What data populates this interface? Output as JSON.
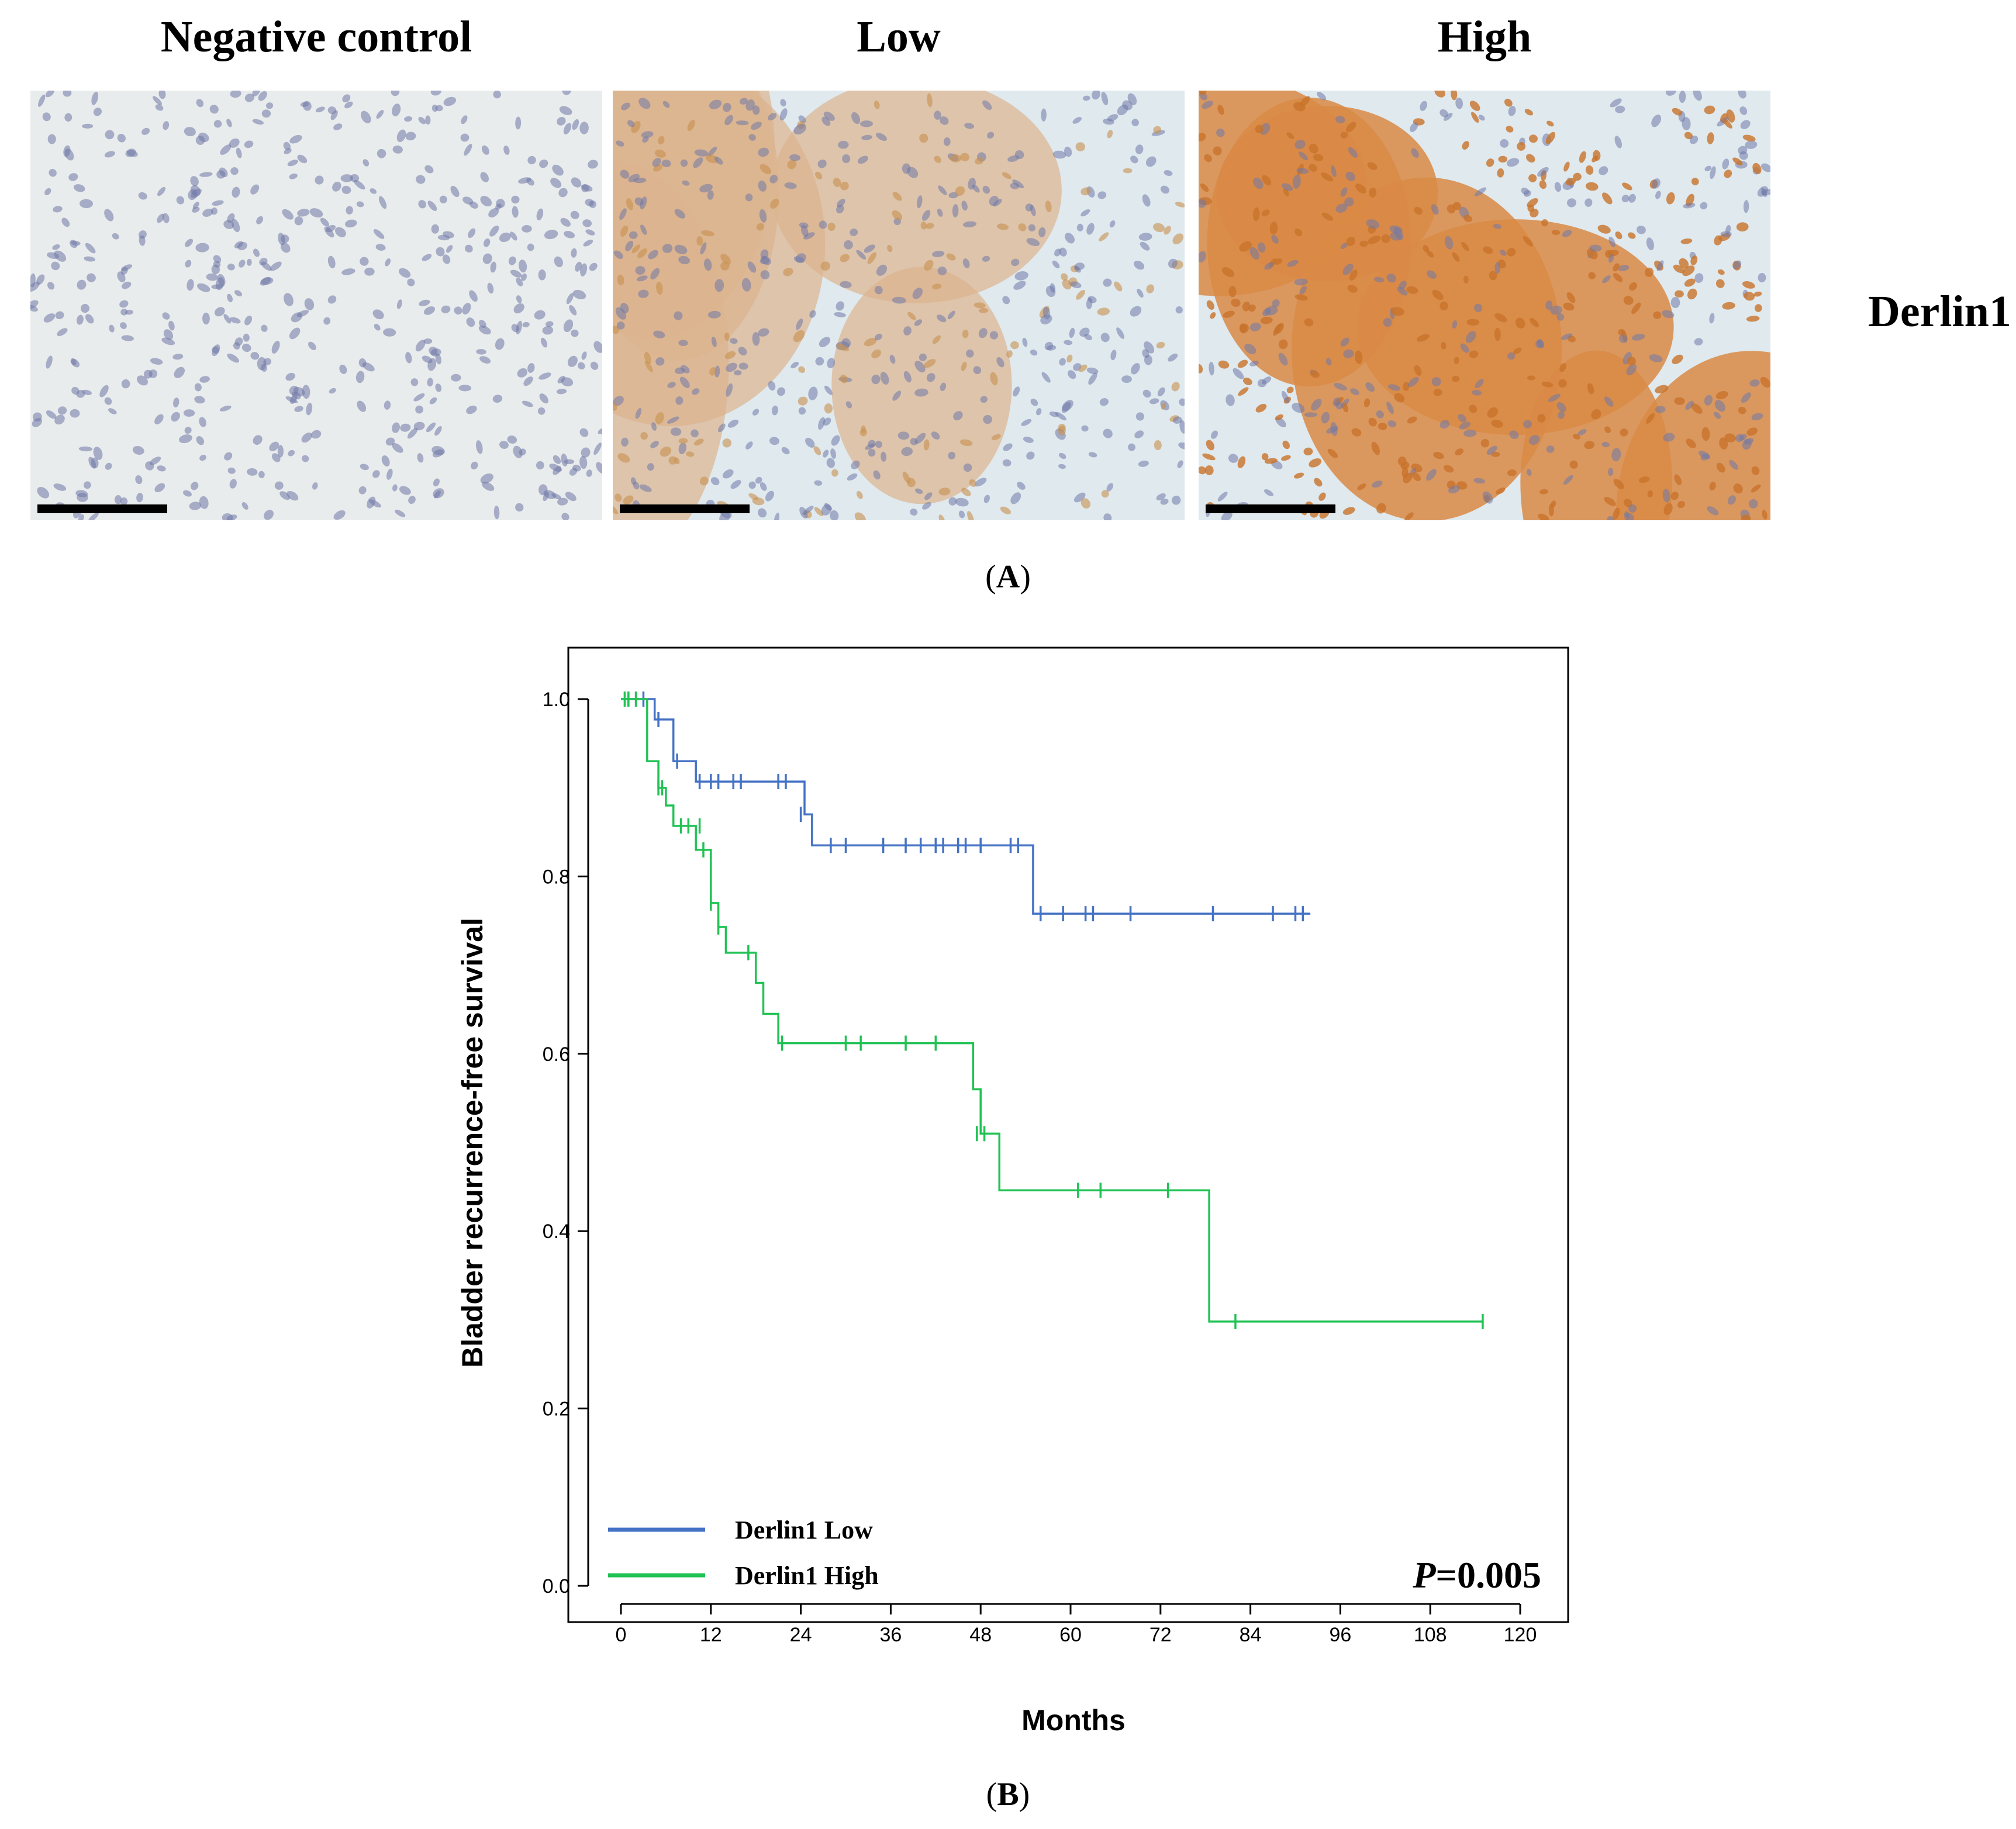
{
  "panel_a": {
    "columns": [
      {
        "title": "Negative control",
        "stain": "negative"
      },
      {
        "title": "Low",
        "stain": "low"
      },
      {
        "title": "High",
        "stain": "high"
      }
    ],
    "row_label": "Derlin1",
    "caption_prefix": "(",
    "caption_letter": "A",
    "caption_suffix": ")"
  },
  "panel_b": {
    "caption_prefix": "(",
    "caption_letter": "B",
    "caption_suffix": ")"
  },
  "colors": {
    "low": "#4472c4",
    "high": "#21c254",
    "nuclei": "#6f78a8",
    "stain_brown": "#c8732a",
    "negative_bg": "#e9ecec",
    "stroma_bg": "#dfe9ee"
  },
  "chart_data": {
    "type": "line",
    "subtype": "kaplan-meier step curve",
    "xlabel": "Months",
    "ylabel": "Bladder recurrence-free survival",
    "xlim": [
      0,
      120
    ],
    "ylim": [
      0,
      1
    ],
    "xticks": [
      "0",
      "12",
      "24",
      "36",
      "48",
      "60",
      "72",
      "84",
      "96",
      "108",
      "120"
    ],
    "yticks": [
      "0.0",
      "0.2",
      "0.4",
      "0.6",
      "0.8",
      "1.0"
    ],
    "grid": false,
    "legend_position": "bottom-left",
    "annotation": {
      "italic": "P",
      "text": "=0.005"
    },
    "series": [
      {
        "name": "Derlin1 Low",
        "color": "#4472c4",
        "steps": [
          [
            0,
            1.0
          ],
          [
            4.5,
            0.977
          ],
          [
            7,
            0.93
          ],
          [
            10,
            0.907
          ],
          [
            24.5,
            0.87
          ],
          [
            25.5,
            0.835
          ],
          [
            55,
            0.758
          ],
          [
            92,
            0.758
          ]
        ],
        "censored": [
          [
            1,
            1.0
          ],
          [
            2,
            1.0
          ],
          [
            3,
            1.0
          ],
          [
            5,
            0.977
          ],
          [
            7.5,
            0.93
          ],
          [
            10.5,
            0.907
          ],
          [
            12,
            0.907
          ],
          [
            13,
            0.907
          ],
          [
            15,
            0.907
          ],
          [
            16,
            0.907
          ],
          [
            21,
            0.907
          ],
          [
            22,
            0.907
          ],
          [
            24,
            0.87
          ],
          [
            28,
            0.835
          ],
          [
            30,
            0.835
          ],
          [
            35,
            0.835
          ],
          [
            38,
            0.835
          ],
          [
            40,
            0.835
          ],
          [
            42,
            0.835
          ],
          [
            43,
            0.835
          ],
          [
            45,
            0.835
          ],
          [
            46,
            0.835
          ],
          [
            48,
            0.835
          ],
          [
            52,
            0.835
          ],
          [
            53,
            0.835
          ],
          [
            56,
            0.758
          ],
          [
            59,
            0.758
          ],
          [
            62,
            0.758
          ],
          [
            63,
            0.758
          ],
          [
            68,
            0.758
          ],
          [
            79,
            0.758
          ],
          [
            87,
            0.758
          ],
          [
            90,
            0.758
          ],
          [
            91,
            0.758
          ]
        ]
      },
      {
        "name": "Derlin1 High",
        "color": "#21c254",
        "steps": [
          [
            0,
            1.0
          ],
          [
            3.5,
            0.93
          ],
          [
            5,
            0.9
          ],
          [
            6,
            0.88
          ],
          [
            7,
            0.857
          ],
          [
            10,
            0.83
          ],
          [
            12,
            0.77
          ],
          [
            13,
            0.743
          ],
          [
            14,
            0.714
          ],
          [
            18,
            0.68
          ],
          [
            19,
            0.645
          ],
          [
            21,
            0.612
          ],
          [
            47,
            0.56
          ],
          [
            48,
            0.51
          ],
          [
            50.5,
            0.446
          ],
          [
            78.5,
            0.298
          ],
          [
            115,
            0.298
          ]
        ],
        "censored": [
          [
            0.5,
            1.0
          ],
          [
            1,
            1.0
          ],
          [
            2,
            1.0
          ],
          [
            5,
            0.9
          ],
          [
            5.5,
            0.9
          ],
          [
            8,
            0.857
          ],
          [
            9,
            0.857
          ],
          [
            10.5,
            0.857
          ],
          [
            11,
            0.83
          ],
          [
            12,
            0.77
          ],
          [
            13,
            0.743
          ],
          [
            17,
            0.714
          ],
          [
            21.5,
            0.612
          ],
          [
            30,
            0.612
          ],
          [
            32,
            0.612
          ],
          [
            38,
            0.612
          ],
          [
            42,
            0.612
          ],
          [
            47.5,
            0.51
          ],
          [
            48.5,
            0.51
          ],
          [
            61,
            0.446
          ],
          [
            64,
            0.446
          ],
          [
            73,
            0.446
          ],
          [
            82,
            0.298
          ],
          [
            115,
            0.298
          ]
        ]
      }
    ]
  }
}
